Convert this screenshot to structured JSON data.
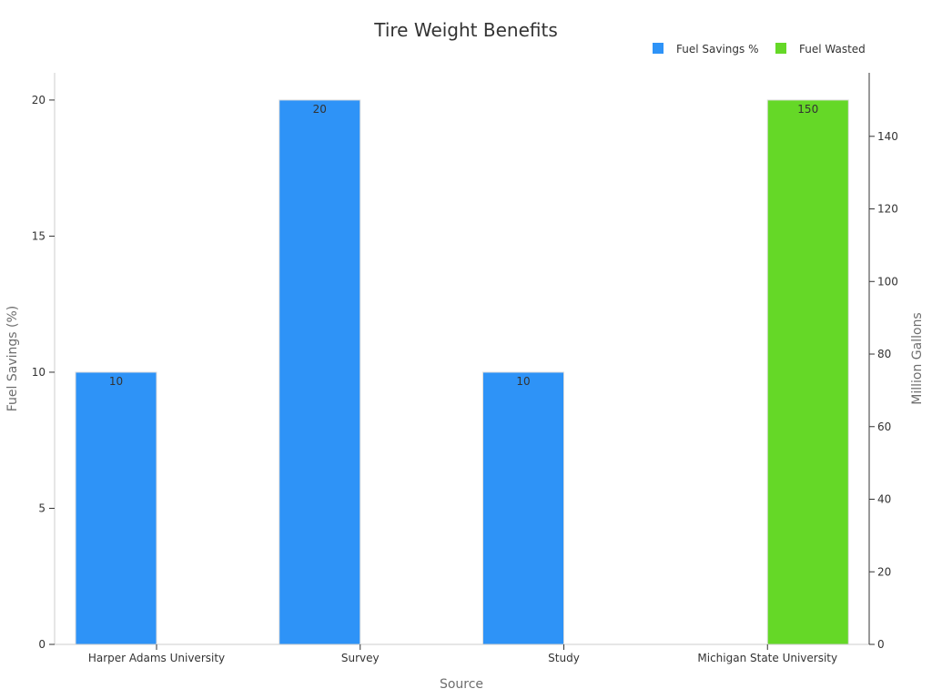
{
  "chart_data": {
    "type": "bar",
    "title": "Tire Weight Benefits",
    "xlabel": "Source",
    "ylabel": "Fuel Savings (%)",
    "y2label": "Million Gallons",
    "categories": [
      "Harper Adams University",
      "Survey",
      "Study",
      "Michigan State University"
    ],
    "ylim": [
      0,
      21
    ],
    "y2lim": [
      0,
      157.5
    ],
    "yticks": [
      0,
      5,
      10,
      15,
      20
    ],
    "y2ticks": [
      0,
      20,
      40,
      60,
      80,
      100,
      120,
      140
    ],
    "legend_position": "top-right",
    "series": [
      {
        "name": "Fuel Savings %",
        "axis": "left",
        "color": "#2e93f7",
        "values": [
          10,
          20,
          10,
          null
        ],
        "labels": [
          "10",
          "20",
          "10",
          ""
        ]
      },
      {
        "name": "Fuel Wasted",
        "axis": "right",
        "color": "#65d827",
        "values": [
          null,
          null,
          null,
          150
        ],
        "labels": [
          "",
          "",
          "",
          "150"
        ]
      }
    ]
  }
}
